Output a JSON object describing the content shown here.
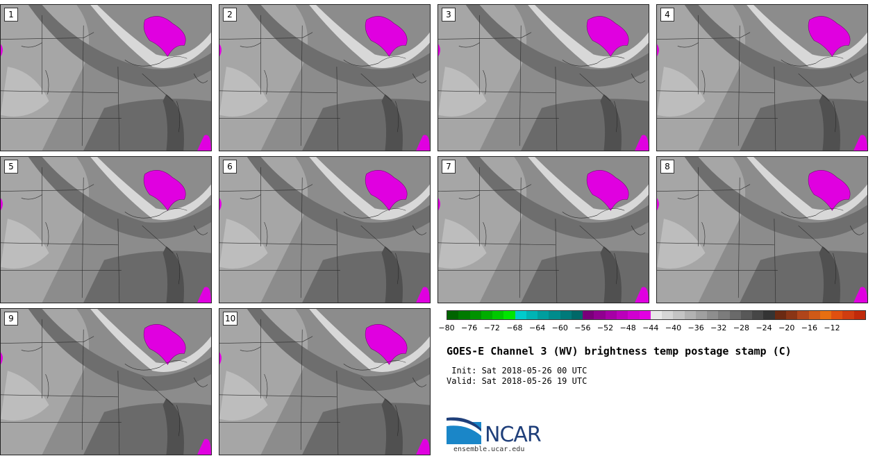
{
  "title": "GOES-E Channel 3 (WV) brightness temp postage stamp (C)",
  "init_line": " Init: Sat 2018-05-26 00 UTC",
  "valid_line": "Valid: Sat 2018-05-26 19 UTC",
  "logo": {
    "text": "NCAR",
    "url": "ensemble.ucar.edu"
  },
  "panels": [
    "1",
    "2",
    "3",
    "4",
    "5",
    "6",
    "7",
    "8",
    "9",
    "10"
  ],
  "colorbar": {
    "colors": [
      "#006400",
      "#007a00",
      "#009200",
      "#00ad00",
      "#00c800",
      "#00e600",
      "#00cccc",
      "#00b4b4",
      "#009e9e",
      "#008c8c",
      "#007a7a",
      "#006868",
      "#7a007a",
      "#900090",
      "#a600a6",
      "#bb00bb",
      "#d000d0",
      "#e300e3",
      "#e8e8e8",
      "#d6d6d6",
      "#c4c4c4",
      "#b2b2b2",
      "#a0a0a0",
      "#8e8e8e",
      "#7c7c7c",
      "#6a6a6a",
      "#585858",
      "#464646",
      "#343434",
      "#6b2a12",
      "#8a3515",
      "#b0451a",
      "#d05a18",
      "#e86f10",
      "#e05010",
      "#d03d10",
      "#c02a0a"
    ],
    "tick_labels": [
      "−80",
      "−76",
      "−72",
      "−68",
      "−64",
      "−60",
      "−56",
      "−52",
      "−48",
      "−44",
      "−40",
      "−36",
      "−32",
      "−28",
      "−24",
      "−20",
      "−16",
      "−12"
    ]
  }
}
